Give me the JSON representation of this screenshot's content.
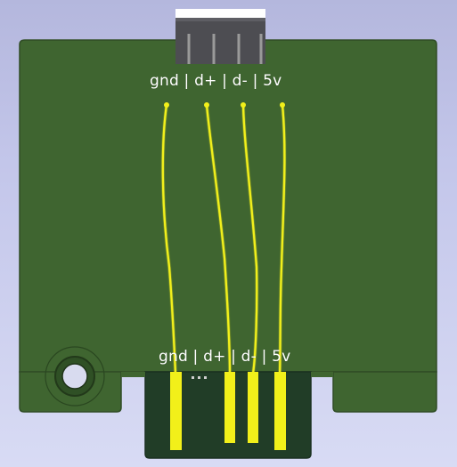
{
  "board": {
    "colors": {
      "background_top": "#b4b7dd",
      "board_fill": "#3f6530",
      "board_edge": "#304d26",
      "connector_pad_area": "#213d27",
      "usb_header_body": "#4d4d52",
      "usb_header_top": "#ffffff",
      "trace": "#f2f01a",
      "trace_glow": "#c9c82a",
      "silkscreen": "#ffffff",
      "mounting_hole": "#2e4d22"
    },
    "top_label": "gnd | d+ | d- | 5v",
    "bottom_label": "gnd | d+ | d- | 5v",
    "top_pins": [
      "gnd",
      "d+",
      "d-",
      "5v"
    ],
    "edge_connector_pins": [
      "gnd",
      "d+",
      "d-",
      "5v"
    ]
  }
}
